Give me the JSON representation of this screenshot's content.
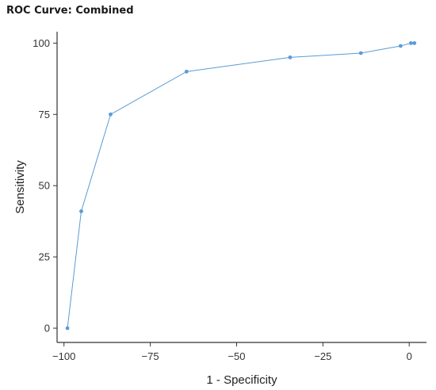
{
  "chart_data": {
    "type": "line",
    "title": "ROC Curve: Combined",
    "xlabel": "1 - Specificity",
    "ylabel": "Sensitivity",
    "xlim": [
      -102,
      5
    ],
    "ylim": [
      -5,
      104
    ],
    "xticks": [
      -100,
      -75,
      -50,
      -25,
      0
    ],
    "yticks": [
      0,
      25,
      50,
      75,
      100
    ],
    "grid": false,
    "legend": "none",
    "series": [
      {
        "color": "#5b9bd5",
        "x": [
          -99,
          -95,
          -86.5,
          -64.5,
          -34.5,
          -14,
          -2.5,
          0.5,
          1.5
        ],
        "y": [
          0,
          41,
          75,
          90,
          95,
          96.5,
          99,
          100,
          100
        ]
      }
    ]
  }
}
